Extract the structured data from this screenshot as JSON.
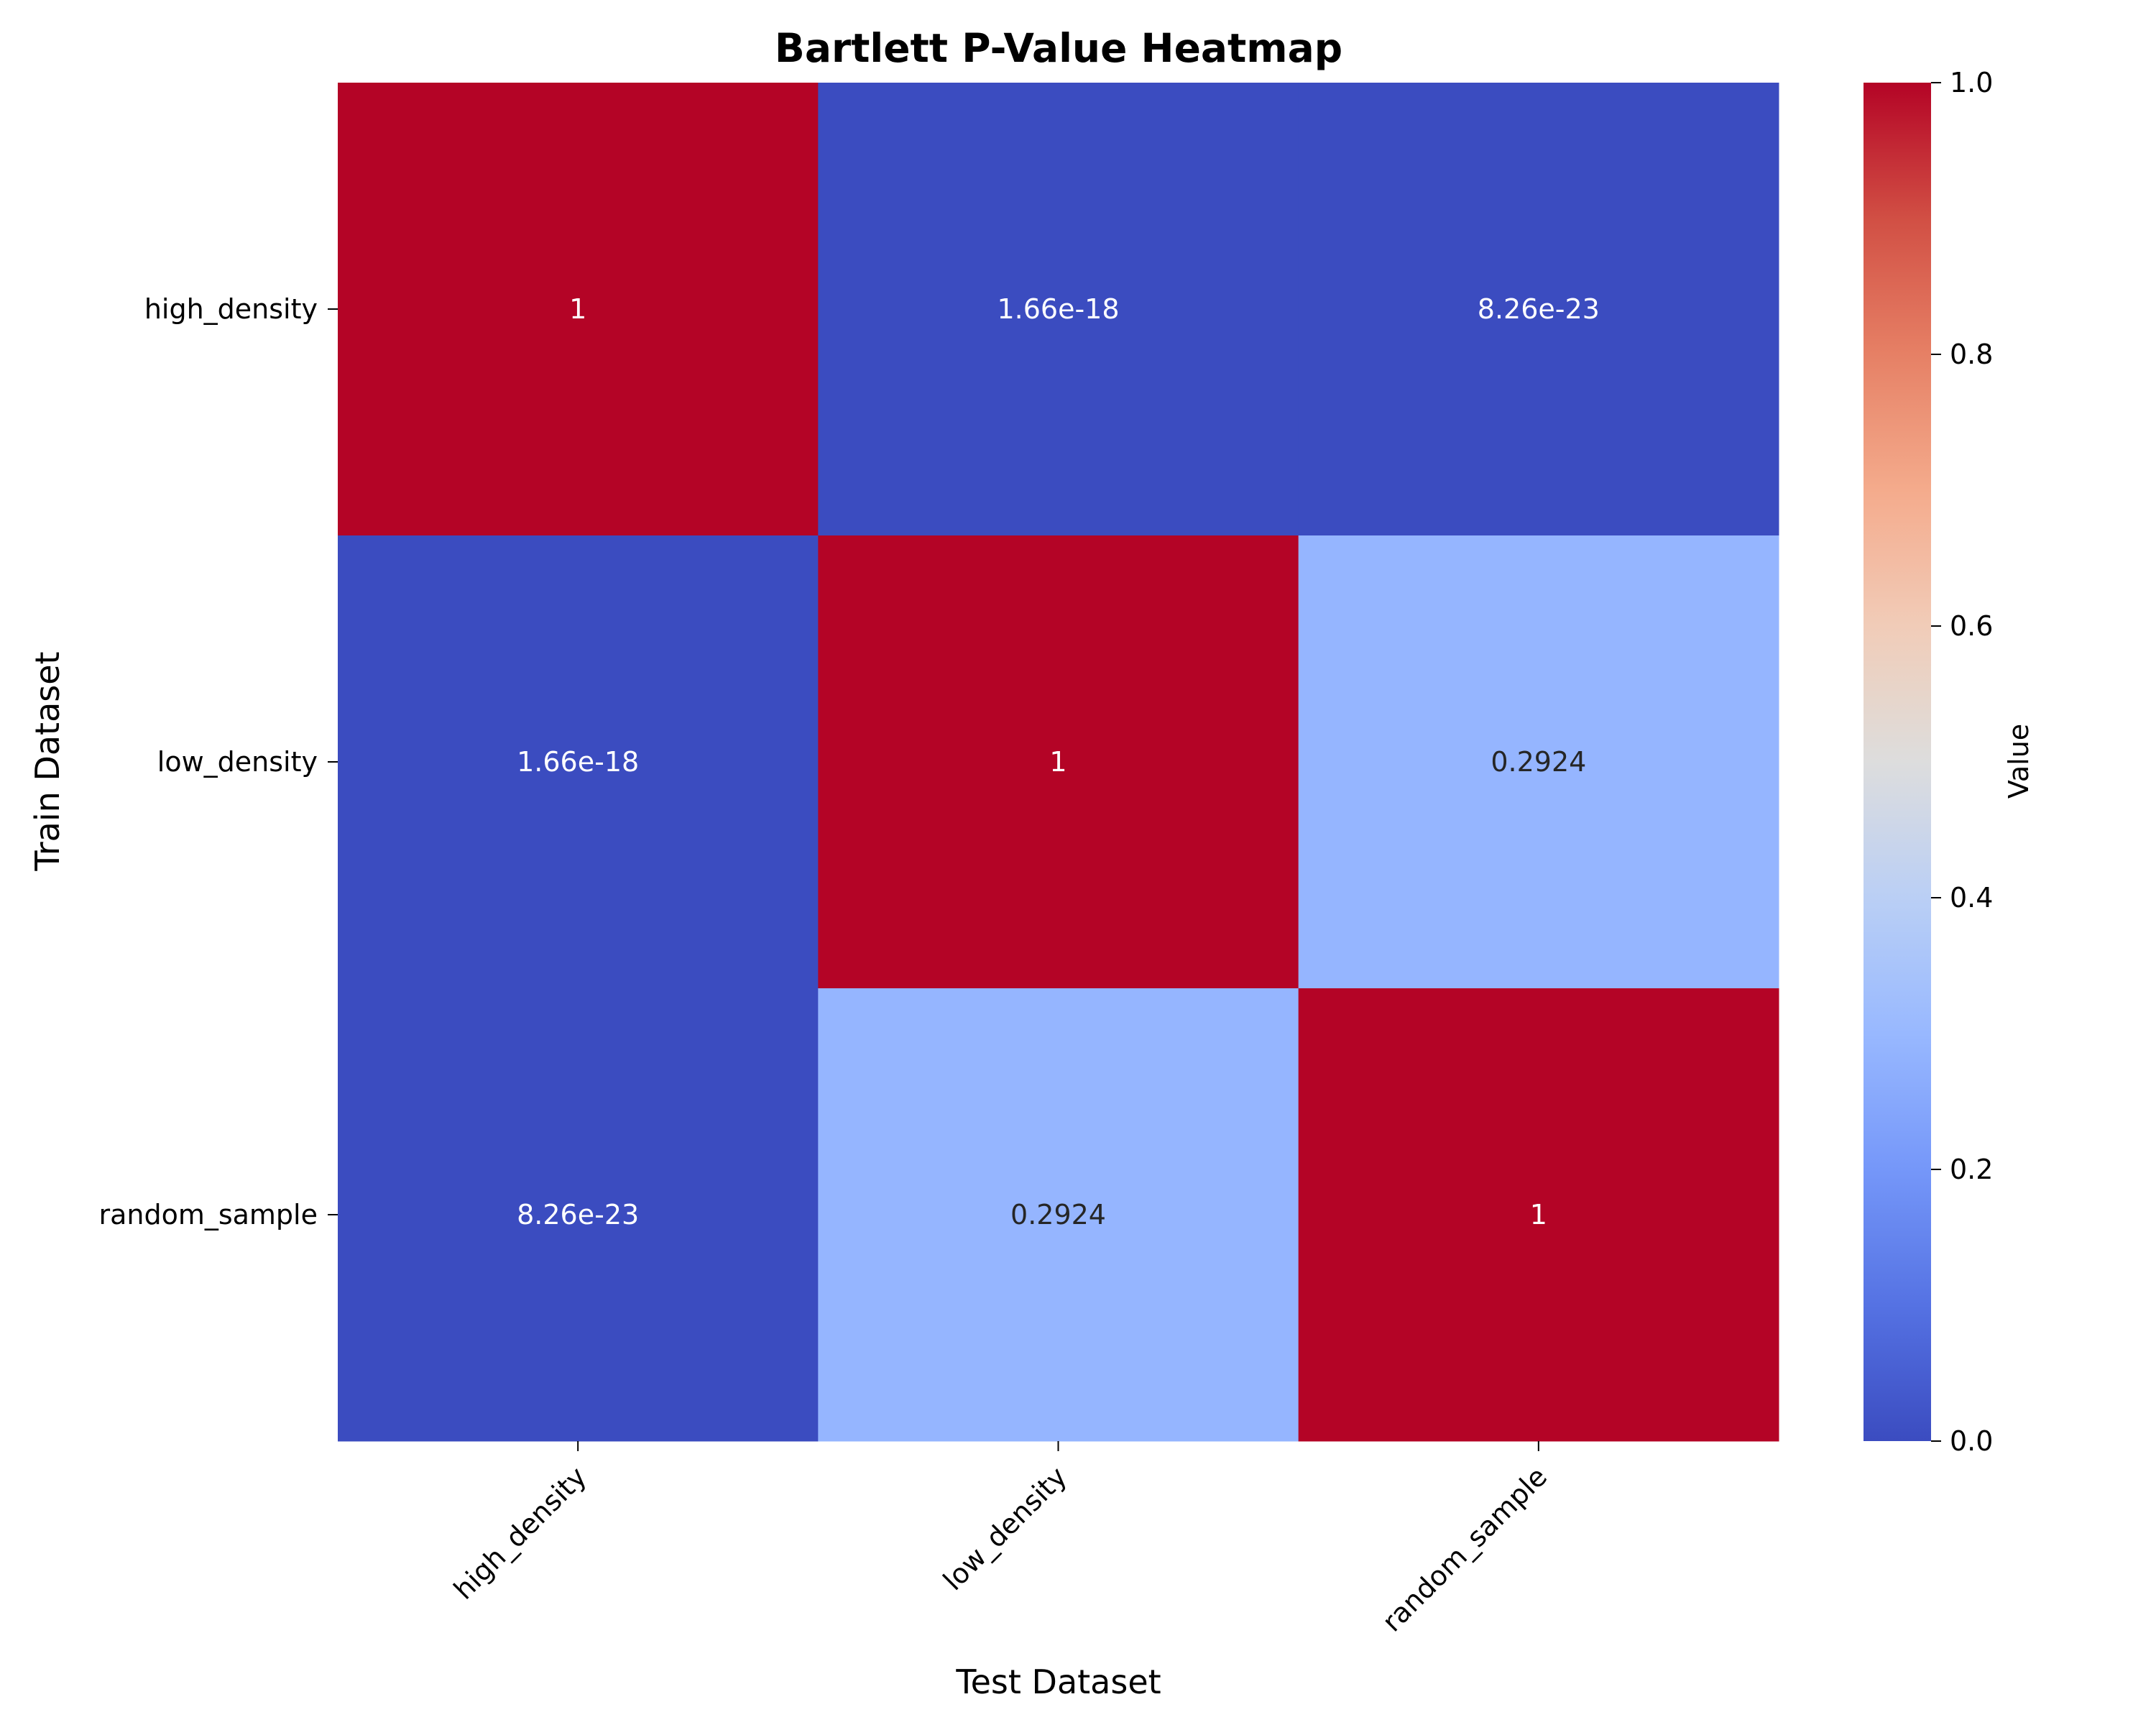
{
  "chart_data": {
    "type": "heatmap",
    "title": "Bartlett P-Value Heatmap",
    "xlabel": "Test Dataset",
    "ylabel": "Train Dataset",
    "x_categories": [
      "high_density",
      "low_density",
      "random_sample"
    ],
    "y_categories": [
      "high_density",
      "low_density",
      "random_sample"
    ],
    "values": [
      [
        1.0,
        1.66e-18,
        8.26e-23
      ],
      [
        1.66e-18,
        1.0,
        0.2924
      ],
      [
        8.26e-23,
        0.2924,
        1.0
      ]
    ],
    "annotations": [
      [
        "1",
        "1.66e-18",
        "8.26e-23"
      ],
      [
        "1.66e-18",
        "1",
        "0.2924"
      ],
      [
        "8.26e-23",
        "0.2924",
        "1"
      ]
    ],
    "colormap": "coolwarm",
    "vmin": 0.0,
    "vmax": 1.0,
    "colorbar": {
      "label": "Value",
      "ticks": [
        "0.0",
        "0.2",
        "0.4",
        "0.6",
        "0.8",
        "1.0"
      ],
      "tick_values": [
        0.0,
        0.2,
        0.4,
        0.6,
        0.8,
        1.0
      ]
    },
    "colors": {
      "low": "#3b4cc0",
      "high": "#b40426"
    }
  }
}
